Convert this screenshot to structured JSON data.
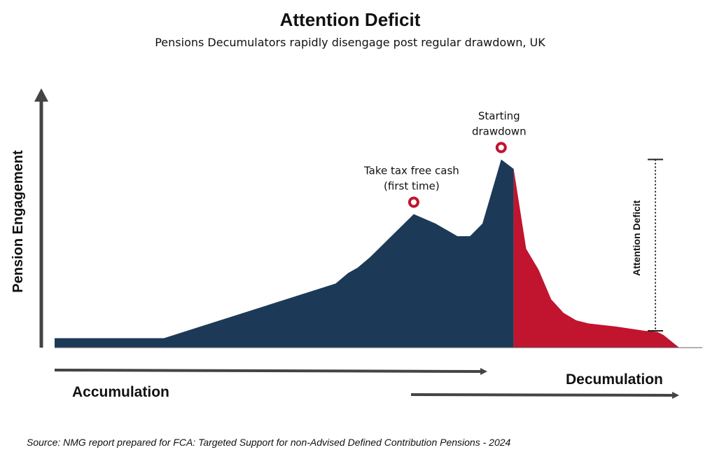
{
  "chart_data": {
    "type": "area",
    "title": "Attention Deficit",
    "subtitle": "Pensions Decumulators rapidly disengage post regular drawdown, UK",
    "ylabel": "Pension Engagement",
    "xlabel": "",
    "grid": false,
    "legend": "none",
    "xlim": [
      0,
      100
    ],
    "ylim": [
      0,
      100
    ],
    "series": [
      {
        "color": "#1c3a57",
        "points": [
          [
            0,
            4.5
          ],
          [
            17.5,
            4.5
          ],
          [
            45,
            30.5
          ],
          [
            47,
            35.5
          ],
          [
            48.5,
            38
          ],
          [
            50.5,
            43
          ],
          [
            57.5,
            63.5
          ],
          [
            61,
            59
          ],
          [
            64.5,
            53
          ],
          [
            66.5,
            53
          ],
          [
            68.5,
            59
          ],
          [
            71.5,
            89.5
          ],
          [
            73.5,
            85
          ]
        ]
      },
      {
        "color": "#c0142f",
        "points": [
          [
            73.5,
            85
          ],
          [
            75.5,
            47
          ],
          [
            77.5,
            37
          ],
          [
            79.5,
            23
          ],
          [
            81.5,
            16.5
          ],
          [
            83.5,
            13
          ],
          [
            85.5,
            11.5
          ],
          [
            90,
            10
          ],
          [
            94.5,
            8
          ],
          [
            96.5,
            7.5
          ],
          [
            97.5,
            6
          ],
          [
            100,
            0
          ]
        ]
      }
    ],
    "annotations": [
      {
        "text_lines": [
          "Take tax free cash",
          "(first time)"
        ],
        "x": 57.5,
        "y": 63.5
      },
      {
        "text_lines": [
          "Starting",
          "drawdown"
        ],
        "x": 71.5,
        "y": 89.5
      }
    ],
    "attention_deficit": {
      "label": "Attention Deficit",
      "y_top": 89.5,
      "y_bottom": 8
    },
    "phases": [
      {
        "label": "Accumulation",
        "x_start": 0,
        "x_end": 72
      },
      {
        "label": "Decumulation",
        "x_start": 57,
        "x_end": 100
      }
    ]
  },
  "source": "Source: NMG report prepared for FCA: Targeted Support for non-Advised Defined Contribution Pensions - 2024",
  "colors": {
    "accumulation_fill": "#1c3a57",
    "decumulation_fill": "#c0142f",
    "marker": "#c0142f",
    "axis": "#444444",
    "text": "#111111"
  }
}
